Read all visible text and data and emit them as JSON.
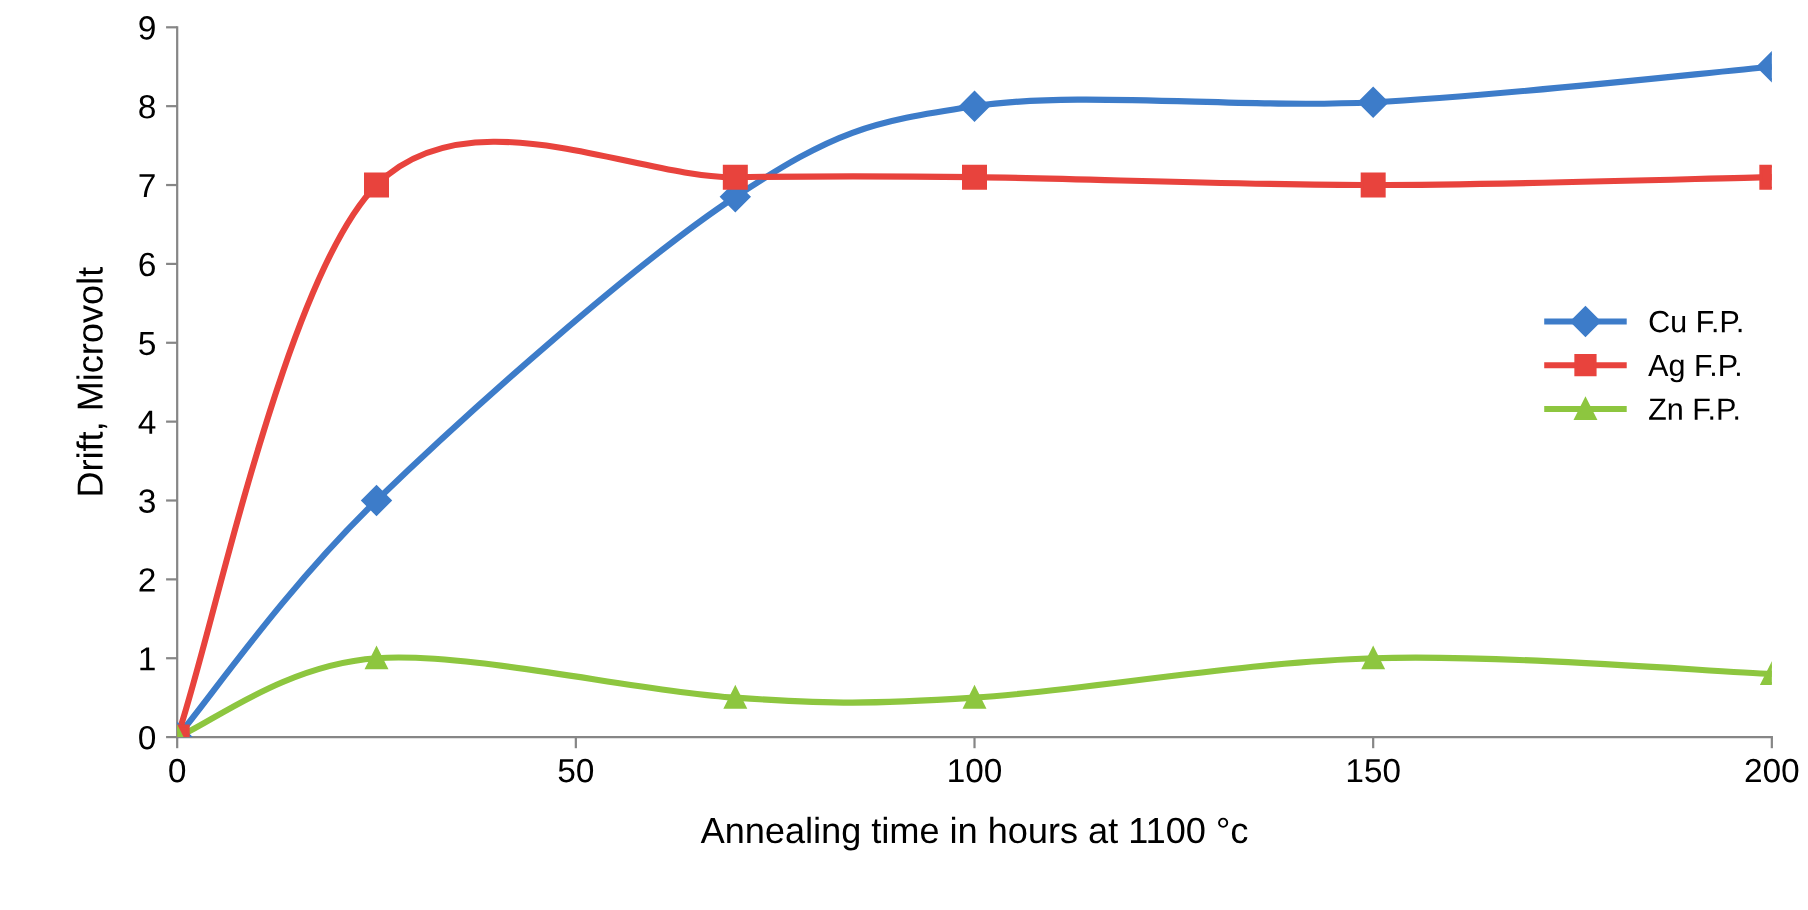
{
  "chart_data": {
    "type": "line",
    "xlabel": "Annealing time in hours at 1100 °c",
    "ylabel": "Drift, Microvolt",
    "x": [
      0,
      25,
      70,
      100,
      150,
      200
    ],
    "series": [
      {
        "name": "Cu F.P.",
        "color": "#3d7cc9",
        "marker": "diamond",
        "values": [
          0,
          3,
          6.85,
          8,
          8.05,
          8.5
        ]
      },
      {
        "name": "Ag F.P.",
        "color": "#e8433d",
        "marker": "square",
        "values": [
          0,
          7,
          7.1,
          7.1,
          7.0,
          7.1
        ]
      },
      {
        "name": "Zn F.P.",
        "color": "#8dc63f",
        "marker": "triangle",
        "values": [
          0,
          1,
          0.5,
          0.5,
          1,
          0.8
        ]
      }
    ],
    "xlim": [
      0,
      200
    ],
    "xticks": [
      0,
      50,
      100,
      150,
      200
    ],
    "ylim": [
      0,
      9
    ],
    "yticks": [
      0,
      1,
      2,
      3,
      4,
      5,
      6,
      7,
      8,
      9
    ],
    "grid": false,
    "legend": "right",
    "line_style": "solid"
  }
}
